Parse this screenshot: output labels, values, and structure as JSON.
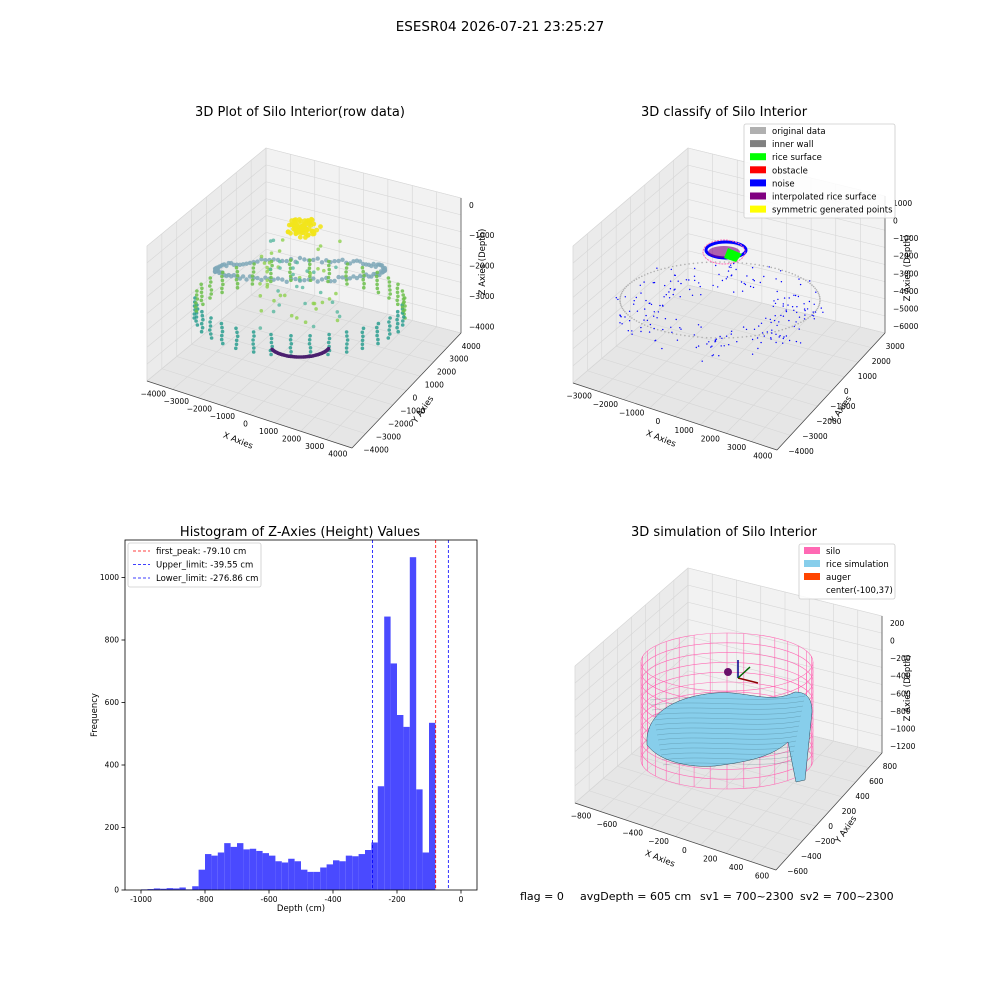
{
  "suptitle": "ESESR04 2026-07-21 23:25:27",
  "footer": {
    "flag": "flag = 0",
    "avg_depth": "avgDepth = 605 cm",
    "sv1": "sv1 = 700~2300",
    "sv2": "sv2 = 700~2300"
  },
  "colors": {
    "histogram_bar": "#4a4aff",
    "peak_line": "#ff0000",
    "limit_line": "#0000ff",
    "silo_wire": "#ff69b4",
    "rice_surface": "#87ceeb",
    "auger": "#ff4500",
    "pane": "#f2f2f2",
    "grid": "#d6d6d6"
  },
  "panels": {
    "raw": {
      "title": "3D Plot of Silo Interior(row data)",
      "xlabel": "X Axies",
      "ylabel": "Y Axies",
      "zlabel": "Z Axies (Depth)",
      "xticks": [
        "−4000",
        "−3000",
        "−2000",
        "−1000",
        "0",
        "1000",
        "2000",
        "3000",
        "4000"
      ],
      "yticks": [
        "4000",
        "3000",
        "2000",
        "1000",
        "0",
        "−1000",
        "−2000",
        "−3000",
        "−4000"
      ],
      "zticks": [
        "0",
        "−1000",
        "−2000",
        "−3000",
        "−4000"
      ]
    },
    "classify": {
      "title": "3D classify of Silo Interior",
      "xlabel": "X Axies",
      "ylabel": "Y Axies",
      "zlabel": "Z Axies (Depth)",
      "xticks": [
        "−3000",
        "−2000",
        "−1000",
        "0",
        "1000",
        "2000",
        "3000",
        "4000"
      ],
      "yticks": [
        "3000",
        "2000",
        "1000",
        "0",
        "−1000",
        "−2000",
        "−3000",
        "−4000"
      ],
      "zticks": [
        "1000",
        "0",
        "−1000",
        "−2000",
        "−3000",
        "−4000",
        "−5000",
        "−6000"
      ],
      "legend": [
        {
          "label": "original data",
          "color": "#b0b0b0"
        },
        {
          "label": "inner wall",
          "color": "#808080"
        },
        {
          "label": "rice surface",
          "color": "#00ff00"
        },
        {
          "label": "obstacle",
          "color": "#ff0000"
        },
        {
          "label": "noise",
          "color": "#0000ff"
        },
        {
          "label": "interpolated rice surface",
          "color": "#800080"
        },
        {
          "label": "symmetric generated points",
          "color": "#ffff00"
        }
      ]
    },
    "simulation": {
      "title": "3D simulation of Silo Interior",
      "xlabel": "X Axies",
      "ylabel": "Y Axies",
      "zlabel": "Z Axies (Depth)",
      "xticks": [
        "−800",
        "−600",
        "−400",
        "−200",
        "0",
        "200",
        "400",
        "600"
      ],
      "yticks": [
        "800",
        "600",
        "400",
        "200",
        "0",
        "−200",
        "−400",
        "−600"
      ],
      "zticks": [
        "200",
        "0",
        "−200",
        "−400",
        "−600",
        "−800",
        "−1000",
        "−1200"
      ],
      "legend": [
        {
          "label": "silo",
          "color": "#ff69b4"
        },
        {
          "label": "rice simulation",
          "color": "#87ceeb"
        },
        {
          "label": "auger",
          "color": "#ff4500"
        },
        {
          "label": "center(-100,37)",
          "color": "none"
        }
      ]
    }
  },
  "chart_data": {
    "type": "bar",
    "title": "Histogram of Z-Axies (Height) Values",
    "xlabel": "Depth (cm)",
    "ylabel": "Frequency",
    "xlim": [
      -1050,
      50
    ],
    "ylim": [
      0,
      1120
    ],
    "xticks": [
      -1000,
      -800,
      -600,
      -400,
      -200,
      0
    ],
    "yticks": [
      0,
      200,
      400,
      600,
      800,
      1000
    ],
    "bin_width": 20,
    "bins": [
      {
        "x0": -1000,
        "count": 2
      },
      {
        "x0": -980,
        "count": 3
      },
      {
        "x0": -960,
        "count": 5
      },
      {
        "x0": -940,
        "count": 4
      },
      {
        "x0": -920,
        "count": 6
      },
      {
        "x0": -900,
        "count": 5
      },
      {
        "x0": -880,
        "count": 8
      },
      {
        "x0": -860,
        "count": 2
      },
      {
        "x0": -840,
        "count": 12
      },
      {
        "x0": -820,
        "count": 65
      },
      {
        "x0": -800,
        "count": 115
      },
      {
        "x0": -780,
        "count": 110
      },
      {
        "x0": -760,
        "count": 120
      },
      {
        "x0": -740,
        "count": 150
      },
      {
        "x0": -720,
        "count": 138
      },
      {
        "x0": -700,
        "count": 150
      },
      {
        "x0": -680,
        "count": 130
      },
      {
        "x0": -660,
        "count": 132
      },
      {
        "x0": -640,
        "count": 125
      },
      {
        "x0": -620,
        "count": 118
      },
      {
        "x0": -600,
        "count": 110
      },
      {
        "x0": -580,
        "count": 92
      },
      {
        "x0": -560,
        "count": 88
      },
      {
        "x0": -540,
        "count": 100
      },
      {
        "x0": -520,
        "count": 92
      },
      {
        "x0": -500,
        "count": 65
      },
      {
        "x0": -480,
        "count": 58
      },
      {
        "x0": -460,
        "count": 58
      },
      {
        "x0": -440,
        "count": 72
      },
      {
        "x0": -420,
        "count": 82
      },
      {
        "x0": -400,
        "count": 95
      },
      {
        "x0": -380,
        "count": 92
      },
      {
        "x0": -360,
        "count": 110
      },
      {
        "x0": -340,
        "count": 108
      },
      {
        "x0": -320,
        "count": 115
      },
      {
        "x0": -300,
        "count": 128
      },
      {
        "x0": -280,
        "count": 152
      },
      {
        "x0": -260,
        "count": 332
      },
      {
        "x0": -240,
        "count": 875
      },
      {
        "x0": -220,
        "count": 725
      },
      {
        "x0": -200,
        "count": 560
      },
      {
        "x0": -180,
        "count": 522
      },
      {
        "x0": -160,
        "count": 1065
      },
      {
        "x0": -140,
        "count": 322
      },
      {
        "x0": -120,
        "count": 120
      },
      {
        "x0": -100,
        "count": 535
      }
    ],
    "vlines": [
      {
        "label": "first_peak: -79.10 cm",
        "x": -79.1,
        "color": "#ff0000"
      },
      {
        "label": "Upper_limit: -39.55 cm",
        "x": -39.55,
        "color": "#0000ff"
      },
      {
        "label": "Lower_limit: -276.86 cm",
        "x": -276.86,
        "color": "#0000ff"
      }
    ]
  }
}
